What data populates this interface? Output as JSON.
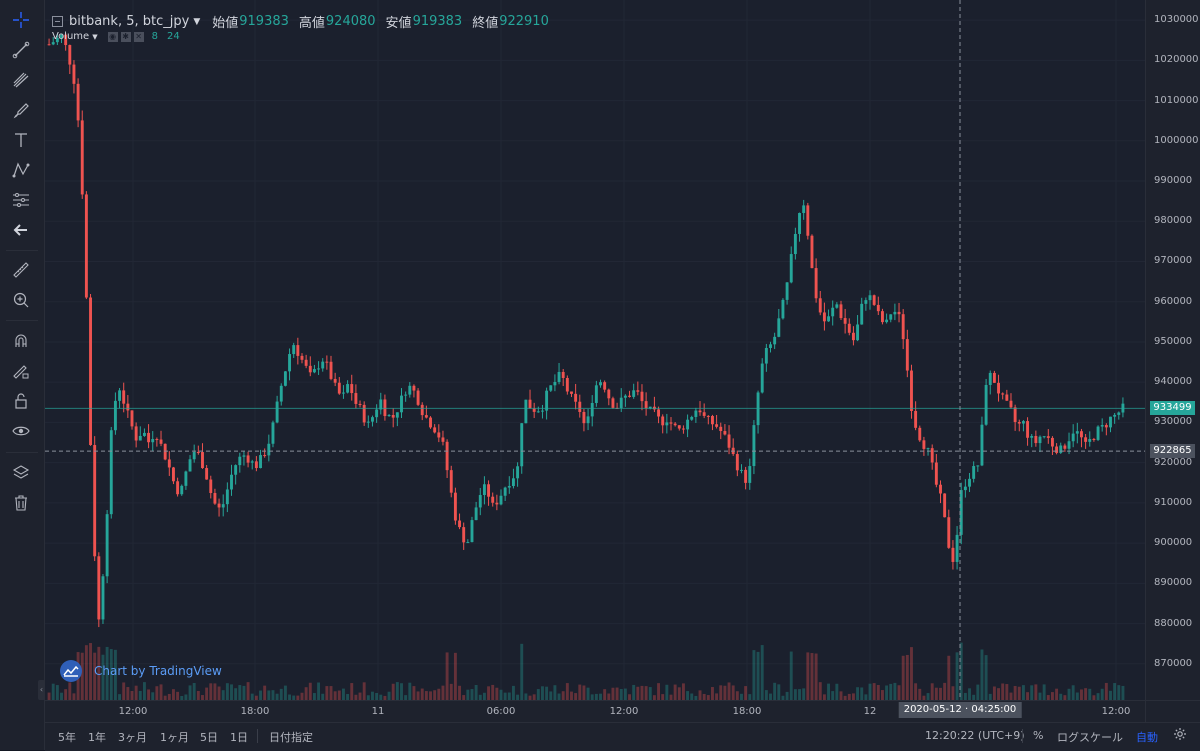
{
  "legend": {
    "symbol": "bitbank, 5, btc_jpy",
    "open_label": "始値",
    "open": "919383",
    "high_label": "高値",
    "high": "924080",
    "low_label": "安値",
    "low": "919383",
    "close_label": "終値",
    "close": "922910"
  },
  "volume_legend": {
    "label": "Volume",
    "ma1": "8",
    "ma2": "24"
  },
  "price_axis": {
    "labels": [
      "1030000",
      "1020000",
      "1010000",
      "1000000",
      "990000",
      "980000",
      "970000",
      "960000",
      "950000",
      "940000",
      "930000",
      "920000",
      "910000",
      "900000",
      "890000",
      "880000",
      "870000"
    ],
    "last_price": "933499",
    "crosshair_price": "922865"
  },
  "time_axis": {
    "labels": [
      "12:00",
      "18:00",
      "11",
      "06:00",
      "12:00",
      "18:00",
      "12",
      "12:00"
    ],
    "crosshair_time": "2020-05-12 · 04:25:00"
  },
  "bottom_bar": {
    "ranges": [
      "5年",
      "1年",
      "3ヶ月",
      "1ヶ月",
      "5日",
      "1日"
    ],
    "goto_date": "日付指定",
    "clock": "12:20:22 (UTC+9)",
    "percent": "%",
    "log_scale": "ログスケール",
    "auto": "自動"
  },
  "watermark": "Chart by TradingView",
  "colors": {
    "up": "#26a69a",
    "down": "#ef5350",
    "accent": "#2962ff",
    "background": "#1b202d"
  },
  "toolbar_icons": [
    "crosshair-icon",
    "trend-line-icon",
    "pitchfork-icon",
    "brush-icon",
    "text-icon",
    "pattern-icon",
    "prediction-icon",
    "back-arrow-icon",
    "ruler-icon",
    "zoom-in-icon",
    "magnet-icon",
    "lock-drawing-icon",
    "unlock-icon",
    "eye-icon",
    "layers-icon",
    "trash-icon"
  ],
  "chart_data": {
    "type": "candlestick",
    "symbol": "bitbank, 5, btc_jpy",
    "interval": "5",
    "y_range": [
      861000,
      1035000
    ],
    "price_ticks": [
      870000,
      880000,
      890000,
      900000,
      910000,
      920000,
      930000,
      940000,
      950000,
      960000,
      970000,
      980000,
      990000,
      1000000,
      1010000,
      1020000,
      1030000
    ],
    "last_price": 933499,
    "crosshair_price": 922865,
    "crosshair_time": "2020-05-12 04:25:00",
    "time_ticks": [
      "12:00",
      "18:00",
      "11",
      "06:00",
      "12:00",
      "18:00",
      "12",
      "12:00"
    ],
    "series": [
      {
        "name": "btc_jpy",
        "close_path": [
          1024000,
          1025000,
          1026000,
          1022000,
          1015000,
          1000000,
          960000,
          905000,
          880000,
          900000,
          928000,
          940000,
          935000,
          930000,
          926000,
          928000,
          925000,
          928000,
          924000,
          920000,
          915000,
          912000,
          918000,
          923000,
          922000,
          918000,
          912000,
          908000,
          910000,
          916000,
          920000,
          922000,
          921000,
          919000,
          921000,
          924000,
          930000,
          938000,
          944000,
          950000,
          947000,
          944000,
          941000,
          944000,
          946000,
          942000,
          938000,
          936000,
          940000,
          935000,
          933000,
          929000,
          932000,
          936000,
          932000,
          931000,
          934000,
          938000,
          939000,
          936000,
          932000,
          930000,
          928000,
          925000,
          916000,
          907000,
          902000,
          900000,
          907000,
          912000,
          914000,
          909000,
          911000,
          914000,
          916000,
          918000,
          936000,
          934000,
          933000,
          934000,
          938000,
          940000,
          942000,
          938000,
          935000,
          933000,
          928000,
          936000,
          941000,
          939000,
          935000,
          934000,
          936000,
          937000,
          938000,
          935000,
          933000,
          932000,
          930000,
          931000,
          929000,
          928000,
          930000,
          932000,
          934000,
          931000,
          930000,
          929000,
          927000,
          924000,
          920000,
          917000,
          915000,
          930000,
          943000,
          948000,
          950000,
          956000,
          962000,
          972000,
          982000,
          985000,
          970000,
          960000,
          955000,
          956000,
          960000,
          956000,
          953000,
          950000,
          958000,
          962000,
          960000,
          956000,
          954000,
          958000,
          957000,
          950000,
          935000,
          928000,
          925000,
          922000,
          915000,
          910000,
          900000,
          895000,
          912000,
          916000,
          918000,
          920000,
          940000,
          942000,
          938000,
          935000,
          933000,
          929000,
          930000,
          926000,
          925000,
          927000,
          926000,
          924000,
          923000,
          925000,
          928000,
          927000,
          924000,
          926000,
          928000,
          929000,
          931000,
          932000,
          933499
        ]
      }
    ],
    "volume_ma": [
      8,
      24
    ]
  }
}
